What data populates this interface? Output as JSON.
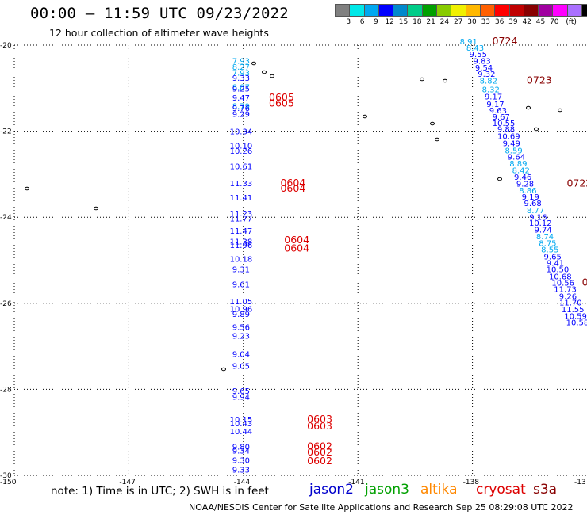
{
  "header": {
    "title": "00:00 – 11:59 UTC 09/23/2022",
    "subtitle": "12 hour collection of altimeter wave heights"
  },
  "scale": {
    "colors": [
      "#808080",
      "#00e8e8",
      "#00a8f0",
      "#0000ff",
      "#0088cc",
      "#00cc88",
      "#00a000",
      "#88cc00",
      "#f0f000",
      "#ffb800",
      "#ff6000",
      "#ff0000",
      "#c00000",
      "#880000",
      "#a000a0",
      "#ff00ff",
      "#aa70ff",
      "#000000"
    ],
    "labels": [
      "3",
      "6",
      "9",
      "12",
      "15",
      "18",
      "21",
      "24",
      "27",
      "30",
      "33",
      "36",
      "39",
      "42",
      "45",
      "70",
      "(ft)"
    ]
  },
  "axes": {
    "lat_labels": [
      "-20",
      "-22",
      "-24",
      "-26",
      "-28",
      "-30"
    ],
    "lon_labels": [
      "-150",
      "-147",
      "-144",
      "-141",
      "-138",
      "-13"
    ]
  },
  "map": {
    "lon_range": [
      -150,
      -135
    ],
    "lat_range": [
      -30,
      -20
    ],
    "heights": [
      {
        "v": "7.93",
        "lon": -144.06,
        "lat": -20.43,
        "c": "#00a8f0"
      },
      {
        "v": "8.27",
        "lon": -144.06,
        "lat": -20.57,
        "c": "#00a8f0"
      },
      {
        "v": "7.93",
        "lon": -144.06,
        "lat": -20.71,
        "c": "#00a8f0"
      },
      {
        "v": "9.33",
        "lon": -144.06,
        "lat": -20.83,
        "c": "#0000ff"
      },
      {
        "v": "8.87",
        "lon": -144.06,
        "lat": -21.04,
        "c": "#00a8f0"
      },
      {
        "v": "9.25",
        "lon": -144.06,
        "lat": -21.08,
        "c": "#0000ff"
      },
      {
        "v": "9.47",
        "lon": -144.06,
        "lat": -21.29,
        "c": "#0000ff"
      },
      {
        "v": "8.79",
        "lon": -144.06,
        "lat": -21.48,
        "c": "#00a8f0"
      },
      {
        "v": "9.76",
        "lon": -144.06,
        "lat": -21.53,
        "c": "#0000ff"
      },
      {
        "v": "9.29",
        "lon": -144.06,
        "lat": -21.67,
        "c": "#0000ff"
      },
      {
        "v": "10.34",
        "lon": -144.06,
        "lat": -22.07,
        "c": "#0000ff"
      },
      {
        "v": "10.10",
        "lon": -144.06,
        "lat": -22.4,
        "c": "#0000ff"
      },
      {
        "v": "10.26",
        "lon": -144.06,
        "lat": -22.52,
        "c": "#0000ff"
      },
      {
        "v": "10.61",
        "lon": -144.06,
        "lat": -22.88,
        "c": "#0000ff"
      },
      {
        "v": "11.33",
        "lon": -144.06,
        "lat": -23.28,
        "c": "#0000ff"
      },
      {
        "v": "11.41",
        "lon": -144.06,
        "lat": -23.61,
        "c": "#0000ff"
      },
      {
        "v": "11.23",
        "lon": -144.06,
        "lat": -23.98,
        "c": "#0000ff"
      },
      {
        "v": "11.77",
        "lon": -144.06,
        "lat": -24.1,
        "c": "#0000ff"
      },
      {
        "v": "11.47",
        "lon": -144.06,
        "lat": -24.38,
        "c": "#0000ff"
      },
      {
        "v": "11.38",
        "lon": -144.06,
        "lat": -24.63,
        "c": "#0000ff"
      },
      {
        "v": "11.96",
        "lon": -144.06,
        "lat": -24.71,
        "c": "#0000ff"
      },
      {
        "v": "10.18",
        "lon": -144.06,
        "lat": -25.04,
        "c": "#0000ff"
      },
      {
        "v": "9.31",
        "lon": -144.06,
        "lat": -25.28,
        "c": "#0000ff"
      },
      {
        "v": "9.61",
        "lon": -144.06,
        "lat": -25.63,
        "c": "#0000ff"
      },
      {
        "v": "11.05",
        "lon": -144.06,
        "lat": -26.02,
        "c": "#0000ff"
      },
      {
        "v": "10.96",
        "lon": -144.06,
        "lat": -26.2,
        "c": "#0000ff"
      },
      {
        "v": "9.89",
        "lon": -144.06,
        "lat": -26.32,
        "c": "#0000ff"
      },
      {
        "v": "9.56",
        "lon": -144.06,
        "lat": -26.62,
        "c": "#0000ff"
      },
      {
        "v": "9.23",
        "lon": -144.06,
        "lat": -26.82,
        "c": "#0000ff"
      },
      {
        "v": "9.04",
        "lon": -144.06,
        "lat": -27.25,
        "c": "#0000ff"
      },
      {
        "v": "9.05",
        "lon": -144.06,
        "lat": -27.52,
        "c": "#0000ff"
      },
      {
        "v": "9.65",
        "lon": -144.06,
        "lat": -28.1,
        "c": "#0000ff"
      },
      {
        "v": "9.94",
        "lon": -144.06,
        "lat": -28.24,
        "c": "#0000ff"
      },
      {
        "v": "10.15",
        "lon": -144.06,
        "lat": -28.77,
        "c": "#0000ff"
      },
      {
        "v": "10.43",
        "lon": -144.06,
        "lat": -28.86,
        "c": "#0000ff"
      },
      {
        "v": "10.44",
        "lon": -144.06,
        "lat": -29.04,
        "c": "#0000ff"
      },
      {
        "v": "9.80",
        "lon": -144.06,
        "lat": -29.4,
        "c": "#0000ff"
      },
      {
        "v": "9.34",
        "lon": -144.06,
        "lat": -29.49,
        "c": "#0000ff"
      },
      {
        "v": "9.30",
        "lon": -144.06,
        "lat": -29.71,
        "c": "#0000ff"
      },
      {
        "v": "9.33",
        "lon": -144.06,
        "lat": -29.94,
        "c": "#0000ff"
      },
      {
        "v": "8.91",
        "lon": -138.1,
        "lat": -19.98,
        "c": "#00a8f0"
      },
      {
        "v": "8.43",
        "lon": -137.93,
        "lat": -20.13,
        "c": "#00a8f0"
      },
      {
        "v": "9.55",
        "lon": -137.85,
        "lat": -20.28,
        "c": "#0000ff"
      },
      {
        "v": "9.83",
        "lon": -137.75,
        "lat": -20.43,
        "c": "#0000ff"
      },
      {
        "v": "9.54",
        "lon": -137.7,
        "lat": -20.59,
        "c": "#0000ff"
      },
      {
        "v": "9.32",
        "lon": -137.63,
        "lat": -20.74,
        "c": "#0000ff"
      },
      {
        "v": "8.82",
        "lon": -137.58,
        "lat": -20.89,
        "c": "#00a8f0"
      },
      {
        "v": "8.32",
        "lon": -137.52,
        "lat": -21.1,
        "c": "#00a8f0"
      },
      {
        "v": "9.17",
        "lon": -137.45,
        "lat": -21.26,
        "c": "#0000ff"
      },
      {
        "v": "9.17",
        "lon": -137.4,
        "lat": -21.44,
        "c": "#0000ff"
      },
      {
        "v": "9.63",
        "lon": -137.33,
        "lat": -21.58,
        "c": "#0000ff"
      },
      {
        "v": "9.67",
        "lon": -137.25,
        "lat": -21.73,
        "c": "#0000ff"
      },
      {
        "v": "10.55",
        "lon": -137.18,
        "lat": -21.88,
        "c": "#0000ff"
      },
      {
        "v": "9.88",
        "lon": -137.12,
        "lat": -22.02,
        "c": "#0000ff"
      },
      {
        "v": "10.69",
        "lon": -137.05,
        "lat": -22.18,
        "c": "#0000ff"
      },
      {
        "v": "9.49",
        "lon": -136.98,
        "lat": -22.35,
        "c": "#0000ff"
      },
      {
        "v": "8.59",
        "lon": -136.92,
        "lat": -22.51,
        "c": "#00a8f0"
      },
      {
        "v": "9.64",
        "lon": -136.85,
        "lat": -22.66,
        "c": "#0000ff"
      },
      {
        "v": "8.89",
        "lon": -136.8,
        "lat": -22.82,
        "c": "#00a8f0"
      },
      {
        "v": "8.42",
        "lon": -136.73,
        "lat": -22.97,
        "c": "#00a8f0"
      },
      {
        "v": "9.46",
        "lon": -136.68,
        "lat": -23.13,
        "c": "#0000ff"
      },
      {
        "v": "9.28",
        "lon": -136.62,
        "lat": -23.29,
        "c": "#0000ff"
      },
      {
        "v": "8.86",
        "lon": -136.55,
        "lat": -23.44,
        "c": "#00a8f0"
      },
      {
        "v": "9.19",
        "lon": -136.48,
        "lat": -23.59,
        "c": "#0000ff"
      },
      {
        "v": "9.68",
        "lon": -136.42,
        "lat": -23.74,
        "c": "#0000ff"
      },
      {
        "v": "8.77",
        "lon": -136.35,
        "lat": -23.9,
        "c": "#00a8f0"
      },
      {
        "v": "9.16",
        "lon": -136.28,
        "lat": -24.06,
        "c": "#0000ff"
      },
      {
        "v": "10.12",
        "lon": -136.22,
        "lat": -24.2,
        "c": "#0000ff"
      },
      {
        "v": "9.74",
        "lon": -136.15,
        "lat": -24.36,
        "c": "#0000ff"
      },
      {
        "v": "8.74",
        "lon": -136.1,
        "lat": -24.51,
        "c": "#00a8f0"
      },
      {
        "v": "8.75",
        "lon": -136.03,
        "lat": -24.67,
        "c": "#00a8f0"
      },
      {
        "v": "8.55",
        "lon": -135.97,
        "lat": -24.82,
        "c": "#00a8f0"
      },
      {
        "v": "9.65",
        "lon": -135.9,
        "lat": -24.98,
        "c": "#0000ff"
      },
      {
        "v": "9.41",
        "lon": -135.83,
        "lat": -25.13,
        "c": "#0000ff"
      },
      {
        "v": "10.50",
        "lon": -135.77,
        "lat": -25.28,
        "c": "#0000ff"
      },
      {
        "v": "10.68",
        "lon": -135.7,
        "lat": -25.44,
        "c": "#0000ff"
      },
      {
        "v": "10.56",
        "lon": -135.63,
        "lat": -25.59,
        "c": "#0000ff"
      },
      {
        "v": "11.73",
        "lon": -135.57,
        "lat": -25.74,
        "c": "#0000ff"
      },
      {
        "v": "9.26",
        "lon": -135.5,
        "lat": -25.9,
        "c": "#0000ff"
      },
      {
        "v": "11.70",
        "lon": -135.43,
        "lat": -26.05,
        "c": "#0000ff"
      },
      {
        "v": "11.55",
        "lon": -135.37,
        "lat": -26.21,
        "c": "#0000ff"
      },
      {
        "v": "10.59",
        "lon": -135.3,
        "lat": -26.36,
        "c": "#0000ff"
      },
      {
        "v": "10.58",
        "lon": -135.25,
        "lat": -26.51,
        "c": "#0000ff"
      }
    ],
    "times": [
      {
        "t": "0605",
        "lon": -143.0,
        "lat": -21.29
      },
      {
        "t": "0605",
        "lon": -143.0,
        "lat": -21.43
      },
      {
        "t": "0604",
        "lon": -142.7,
        "lat": -23.28
      },
      {
        "t": "0604",
        "lon": -142.7,
        "lat": -23.41
      },
      {
        "t": "0604",
        "lon": -142.6,
        "lat": -24.6
      },
      {
        "t": "0604",
        "lon": -142.6,
        "lat": -24.8
      },
      {
        "t": "0603",
        "lon": -142.0,
        "lat": -28.77
      },
      {
        "t": "0603",
        "lon": -142.0,
        "lat": -28.93
      },
      {
        "t": "0602",
        "lon": -142.0,
        "lat": -29.4
      },
      {
        "t": "0602",
        "lon": -142.0,
        "lat": -29.54
      },
      {
        "t": "0602",
        "lon": -142.0,
        "lat": -29.74
      },
      {
        "t": "0724",
        "lon": -137.15,
        "lat": -19.98
      },
      {
        "t": "0723",
        "lon": -136.25,
        "lat": -20.89
      },
      {
        "t": "0722",
        "lon": -135.2,
        "lat": -23.29
      },
      {
        "t": "0",
        "lon": -135.05,
        "lat": -25.59
      }
    ]
  },
  "note": "note:  1) Time is in UTC;  2) SWH is in feet",
  "satellites": [
    {
      "name": "jason2",
      "color": "#0000cc"
    },
    {
      "name": "jason3",
      "color": "#00a000"
    },
    {
      "name": "altika",
      "color": "#ff8800"
    },
    {
      "name": "cryosat",
      "color": "#dd0000"
    },
    {
      "name": "s3a",
      "color": "#880000"
    }
  ],
  "footer": "NOAA/NESDIS Center for Satellite Applications and Research    Sep 25 08:29:08 UTC 2022"
}
